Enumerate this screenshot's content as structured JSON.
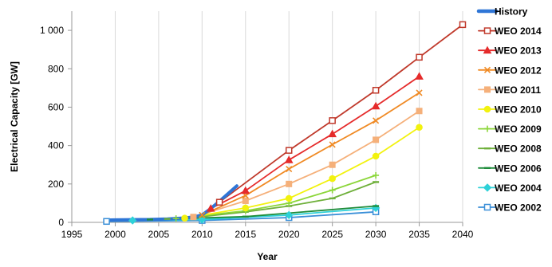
{
  "chart_data": {
    "type": "line",
    "xlabel": "Year",
    "ylabel": "Electrical Capacity [GW]",
    "xlim": [
      1995,
      2040
    ],
    "ylim": [
      0,
      1100
    ],
    "x_ticks": [
      "1995",
      "2000",
      "2005",
      "2010",
      "2015",
      "2020",
      "2025",
      "2030",
      "2035",
      "2040"
    ],
    "y_ticks": [
      "0",
      "200",
      "400",
      "600",
      "800",
      "1 000"
    ],
    "x_tick_values": [
      1995,
      2000,
      2005,
      2010,
      2015,
      2020,
      2025,
      2030,
      2035,
      2040
    ],
    "y_tick_values": [
      0,
      200,
      400,
      600,
      800,
      1000
    ],
    "grid": "vertical",
    "legend_position": "right",
    "series": [
      {
        "name": "History",
        "color": "#2E75D6",
        "marker": "none",
        "x": [
          1999,
          2000,
          2002,
          2004,
          2006,
          2008,
          2009,
          2010,
          2011,
          2012,
          2013,
          2014
        ],
        "y": [
          12,
          13,
          14,
          15,
          18,
          23,
          28,
          38,
          72,
          110,
          150,
          190
        ]
      },
      {
        "name": "WEO 2014",
        "color": "#C0392B",
        "marker": "square-open",
        "x": [
          2012,
          2020,
          2025,
          2030,
          2035,
          2040
        ],
        "y": [
          105,
          375,
          530,
          688,
          860,
          1030
        ]
      },
      {
        "name": "WEO 2013",
        "color": "#E52B2B",
        "marker": "triangle",
        "x": [
          2011,
          2015,
          2020,
          2025,
          2030,
          2035
        ],
        "y": [
          72,
          165,
          325,
          460,
          605,
          760
        ]
      },
      {
        "name": "WEO 2012",
        "color": "#F08A24",
        "marker": "x",
        "x": [
          2010,
          2015,
          2020,
          2025,
          2030,
          2035
        ],
        "y": [
          38,
          140,
          278,
          405,
          530,
          675
        ]
      },
      {
        "name": "WEO 2011",
        "color": "#F5B07A",
        "marker": "square-filled",
        "x": [
          2009,
          2015,
          2020,
          2025,
          2030,
          2035
        ],
        "y": [
          28,
          112,
          200,
          300,
          430,
          580
        ]
      },
      {
        "name": "WEO 2010",
        "color": "#F2F20F",
        "marker": "circle",
        "x": [
          2008,
          2015,
          2020,
          2025,
          2030,
          2035
        ],
        "y": [
          22,
          75,
          125,
          228,
          345,
          495
        ]
      },
      {
        "name": "WEO 2009",
        "color": "#8CD63A",
        "marker": "plus",
        "x": [
          2007,
          2015,
          2020,
          2025,
          2030
        ],
        "y": [
          20,
          60,
          100,
          168,
          245
        ]
      },
      {
        "name": "WEO 2008",
        "color": "#6FB03B",
        "marker": "dash",
        "x": [
          2006,
          2010,
          2015,
          2020,
          2025,
          2030
        ],
        "y": [
          18,
          30,
          55,
          85,
          125,
          210
        ]
      },
      {
        "name": "WEO 2006",
        "color": "#1E8C3A",
        "marker": "dash",
        "x": [
          2004,
          2015,
          2030
        ],
        "y": [
          15,
          30,
          85
        ]
      },
      {
        "name": "WEO 2004",
        "color": "#2ED1D8",
        "marker": "diamond",
        "x": [
          2002,
          2010,
          2020,
          2030
        ],
        "y": [
          10,
          15,
          38,
          75
        ]
      },
      {
        "name": "WEO 2002",
        "color": "#3A8FD8",
        "marker": "square-open",
        "x": [
          1999,
          2010,
          2020,
          2030
        ],
        "y": [
          5,
          10,
          25,
          55
        ]
      }
    ]
  }
}
